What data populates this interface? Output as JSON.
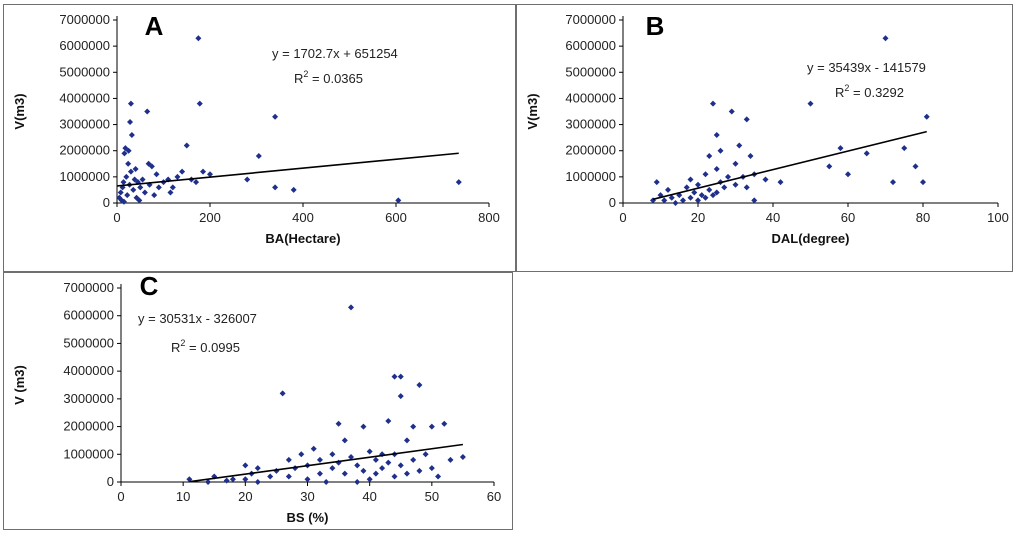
{
  "chart_data": [
    {
      "type": "scatter",
      "panel_label": "A",
      "xlabel": "BA(Hectare)",
      "ylabel": "V(m3)",
      "xlim": [
        0,
        800
      ],
      "ylim": [
        0,
        7000000
      ],
      "xticks": [
        "0",
        "200",
        "400",
        "600",
        "800"
      ],
      "yticks": [
        "0",
        "1000000",
        "2000000",
        "3000000",
        "4000000",
        "5000000",
        "6000000",
        "7000000"
      ],
      "equation": "y = 1702.7x + 651254",
      "r2_prefix": "R",
      "r2_sup": "2",
      "r2_value": " = 0.0365",
      "trendline": {
        "slope": 1702.7,
        "intercept": 651254,
        "x_range": [
          0,
          735
        ]
      },
      "marker_color": "#1f2f8c",
      "points": [
        [
          5,
          200000
        ],
        [
          8,
          400000
        ],
        [
          10,
          100000
        ],
        [
          12,
          600000
        ],
        [
          14,
          800000
        ],
        [
          15,
          50000
        ],
        [
          16,
          1900000
        ],
        [
          18,
          2100000
        ],
        [
          20,
          1000000
        ],
        [
          22,
          300000
        ],
        [
          24,
          1500000
        ],
        [
          25,
          2000000
        ],
        [
          27,
          700000
        ],
        [
          28,
          3100000
        ],
        [
          30,
          3800000
        ],
        [
          30,
          1200000
        ],
        [
          32,
          2600000
        ],
        [
          35,
          500000
        ],
        [
          38,
          900000
        ],
        [
          40,
          1300000
        ],
        [
          42,
          200000
        ],
        [
          45,
          800000
        ],
        [
          48,
          100000
        ],
        [
          50,
          600000
        ],
        [
          55,
          900000
        ],
        [
          60,
          400000
        ],
        [
          65,
          3500000
        ],
        [
          68,
          1500000
        ],
        [
          70,
          700000
        ],
        [
          75,
          1400000
        ],
        [
          80,
          300000
        ],
        [
          85,
          1100000
        ],
        [
          90,
          600000
        ],
        [
          100,
          800000
        ],
        [
          110,
          900000
        ],
        [
          115,
          400000
        ],
        [
          120,
          600000
        ],
        [
          130,
          1000000
        ],
        [
          140,
          1200000
        ],
        [
          150,
          2200000
        ],
        [
          160,
          900000
        ],
        [
          170,
          800000
        ],
        [
          175,
          6300000
        ],
        [
          178,
          3800000
        ],
        [
          185,
          1200000
        ],
        [
          200,
          1100000
        ],
        [
          280,
          900000
        ],
        [
          305,
          1800000
        ],
        [
          340,
          3300000
        ],
        [
          340,
          600000
        ],
        [
          380,
          500000
        ],
        [
          605,
          100000
        ],
        [
          735,
          800000
        ]
      ]
    },
    {
      "type": "scatter",
      "panel_label": "B",
      "xlabel": "DAL(degree)",
      "ylabel": "V(m3)",
      "xlim": [
        0,
        100
      ],
      "ylim": [
        0,
        7000000
      ],
      "xticks": [
        "0",
        "20",
        "40",
        "60",
        "80",
        "100"
      ],
      "yticks": [
        "0",
        "1000000",
        "2000000",
        "3000000",
        "4000000",
        "5000000",
        "6000000",
        "7000000"
      ],
      "equation": "y = 35439x - 141579",
      "r2_prefix": "R",
      "r2_sup": "2",
      "r2_value": " = 0.3292",
      "trendline": {
        "slope": 35439,
        "intercept": -141579,
        "x_range": [
          8,
          81
        ]
      },
      "marker_color": "#1f2f8c",
      "points": [
        [
          8,
          100000
        ],
        [
          9,
          800000
        ],
        [
          10,
          300000
        ],
        [
          11,
          100000
        ],
        [
          12,
          500000
        ],
        [
          13,
          200000
        ],
        [
          14,
          0
        ],
        [
          15,
          300000
        ],
        [
          16,
          100000
        ],
        [
          17,
          600000
        ],
        [
          18,
          200000
        ],
        [
          18,
          900000
        ],
        [
          19,
          400000
        ],
        [
          20,
          100000
        ],
        [
          20,
          700000
        ],
        [
          21,
          300000
        ],
        [
          22,
          200000
        ],
        [
          22,
          1100000
        ],
        [
          23,
          500000
        ],
        [
          23,
          1800000
        ],
        [
          24,
          300000
        ],
        [
          24,
          3800000
        ],
        [
          25,
          2600000
        ],
        [
          25,
          1300000
        ],
        [
          25,
          400000
        ],
        [
          26,
          800000
        ],
        [
          26,
          2000000
        ],
        [
          27,
          600000
        ],
        [
          28,
          1000000
        ],
        [
          29,
          3500000
        ],
        [
          30,
          1500000
        ],
        [
          30,
          700000
        ],
        [
          31,
          2200000
        ],
        [
          32,
          1000000
        ],
        [
          33,
          3200000
        ],
        [
          33,
          600000
        ],
        [
          34,
          1800000
        ],
        [
          35,
          1100000
        ],
        [
          35,
          100000
        ],
        [
          38,
          900000
        ],
        [
          42,
          800000
        ],
        [
          50,
          3800000
        ],
        [
          55,
          1400000
        ],
        [
          58,
          2100000
        ],
        [
          60,
          1100000
        ],
        [
          65,
          1900000
        ],
        [
          70,
          6300000
        ],
        [
          72,
          800000
        ],
        [
          75,
          2100000
        ],
        [
          78,
          1400000
        ],
        [
          80,
          800000
        ],
        [
          81,
          3300000
        ]
      ]
    },
    {
      "type": "scatter",
      "panel_label": "C",
      "xlabel": "BS (%)",
      "ylabel": "V (m3)",
      "xlim": [
        0,
        60
      ],
      "ylim": [
        0,
        7000000
      ],
      "xticks": [
        "0",
        "10",
        "20",
        "30",
        "40",
        "50",
        "60"
      ],
      "yticks": [
        "0",
        "1000000",
        "2000000",
        "3000000",
        "4000000",
        "5000000",
        "6000000",
        "7000000"
      ],
      "equation": "y = 30531x - 326007",
      "r2_prefix": "R",
      "r2_sup": "2",
      "r2_value": " = 0.0995",
      "trendline": {
        "slope": 30531,
        "intercept": -326007,
        "x_range": [
          11,
          55
        ]
      },
      "marker_color": "#1f2f8c",
      "points": [
        [
          11,
          100000
        ],
        [
          14,
          0
        ],
        [
          15,
          200000
        ],
        [
          17,
          50000
        ],
        [
          18,
          100000
        ],
        [
          20,
          600000
        ],
        [
          20,
          100000
        ],
        [
          21,
          300000
        ],
        [
          22,
          0
        ],
        [
          22,
          500000
        ],
        [
          24,
          200000
        ],
        [
          25,
          400000
        ],
        [
          26,
          3200000
        ],
        [
          27,
          200000
        ],
        [
          27,
          800000
        ],
        [
          28,
          500000
        ],
        [
          29,
          1000000
        ],
        [
          30,
          100000
        ],
        [
          30,
          600000
        ],
        [
          31,
          1200000
        ],
        [
          32,
          300000
        ],
        [
          32,
          800000
        ],
        [
          33,
          0
        ],
        [
          34,
          1000000
        ],
        [
          34,
          500000
        ],
        [
          35,
          2100000
        ],
        [
          35,
          700000
        ],
        [
          36,
          1500000
        ],
        [
          36,
          300000
        ],
        [
          37,
          6300000
        ],
        [
          37,
          900000
        ],
        [
          38,
          0
        ],
        [
          38,
          600000
        ],
        [
          39,
          2000000
        ],
        [
          39,
          400000
        ],
        [
          40,
          1100000
        ],
        [
          40,
          100000
        ],
        [
          41,
          800000
        ],
        [
          41,
          300000
        ],
        [
          42,
          1000000
        ],
        [
          42,
          500000
        ],
        [
          43,
          2200000
        ],
        [
          43,
          700000
        ],
        [
          44,
          3800000
        ],
        [
          44,
          1000000
        ],
        [
          44,
          200000
        ],
        [
          45,
          3100000
        ],
        [
          45,
          600000
        ],
        [
          45,
          3800000
        ],
        [
          46,
          1500000
        ],
        [
          46,
          300000
        ],
        [
          47,
          2000000
        ],
        [
          47,
          800000
        ],
        [
          48,
          400000
        ],
        [
          48,
          3500000
        ],
        [
          49,
          1000000
        ],
        [
          50,
          2000000
        ],
        [
          50,
          500000
        ],
        [
          51,
          200000
        ],
        [
          52,
          2100000
        ],
        [
          53,
          800000
        ],
        [
          55,
          900000
        ]
      ]
    }
  ]
}
